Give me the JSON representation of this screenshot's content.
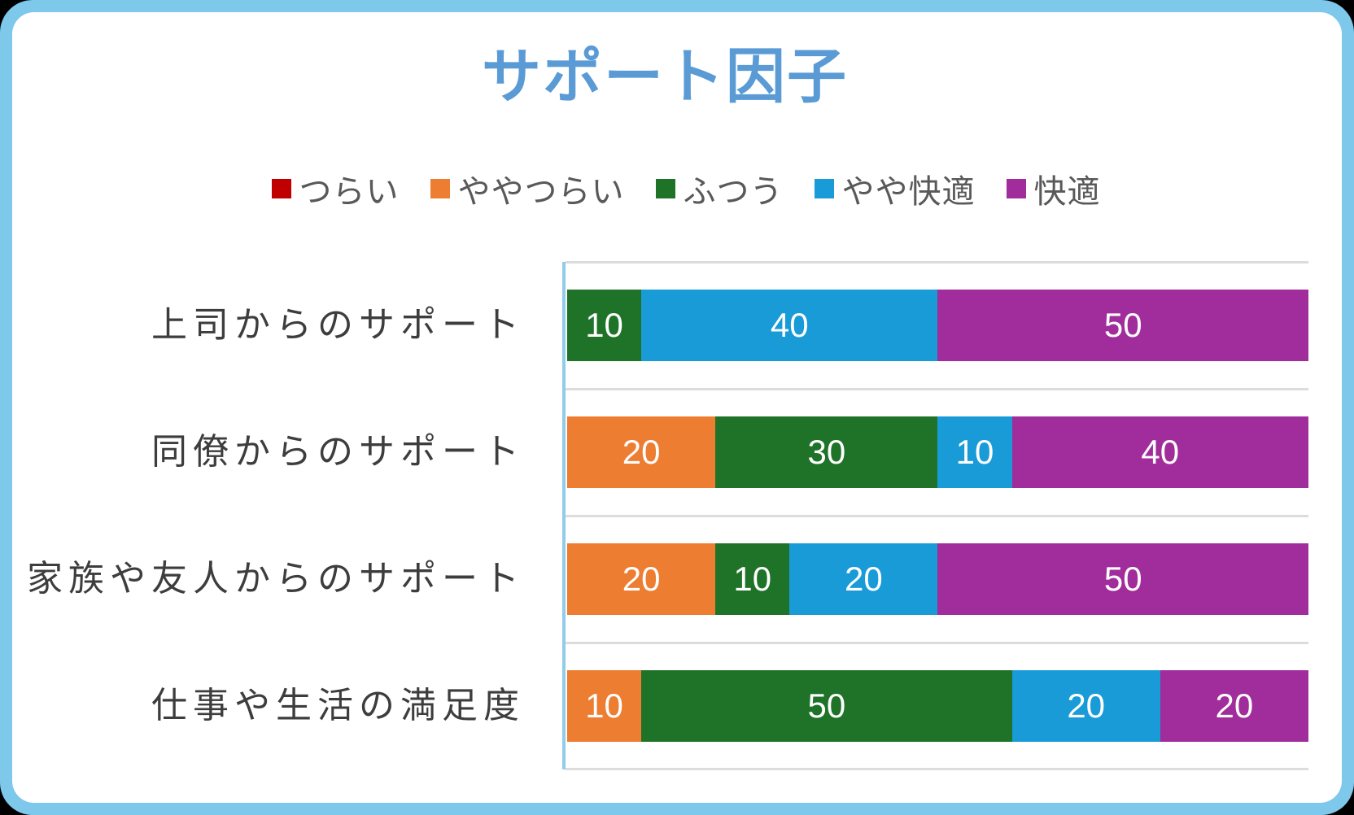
{
  "title": {
    "text": "サポート因子",
    "color": "#5b9bd5"
  },
  "chart_data": {
    "type": "bar",
    "orientation": "horizontal",
    "stacked": true,
    "title": "サポート因子",
    "categories": [
      "上司からのサポート",
      "同僚からのサポート",
      "家族や友人からのサポート",
      "仕事や生活の満足度"
    ],
    "series": [
      {
        "name": "つらい",
        "color": "#c00000",
        "values": [
          0,
          0,
          0,
          0
        ]
      },
      {
        "name": "ややつらい",
        "color": "#ed7d31",
        "values": [
          0,
          20,
          20,
          10
        ]
      },
      {
        "name": "ふつう",
        "color": "#1e7328",
        "values": [
          10,
          30,
          10,
          50
        ]
      },
      {
        "name": "やや快適",
        "color": "#199bd7",
        "values": [
          40,
          10,
          20,
          20
        ]
      },
      {
        "name": "快適",
        "color": "#a02d9b",
        "values": [
          50,
          40,
          50,
          20
        ]
      }
    ],
    "xlim": [
      0,
      100
    ],
    "data_labels": true,
    "legend_position": "top",
    "gridlines": "category-boundaries"
  }
}
